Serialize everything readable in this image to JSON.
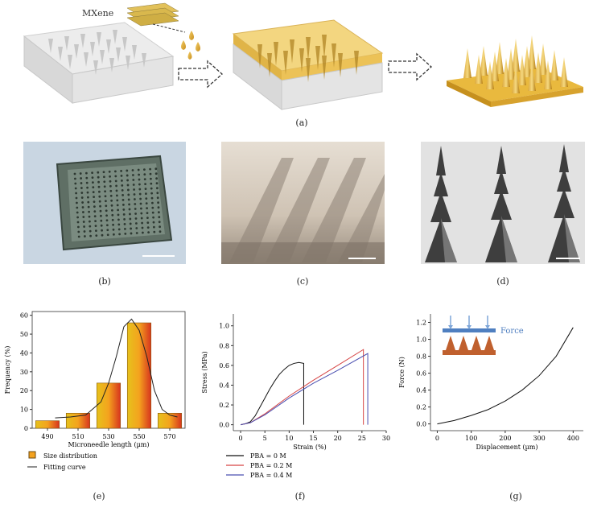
{
  "panels": {
    "a": {
      "label": "(a)",
      "mxene_label": "MXene"
    },
    "b": {
      "label": "(b)"
    },
    "c": {
      "label": "(c)"
    },
    "d": {
      "label": "(d)"
    },
    "e": {
      "label": "(e)"
    },
    "f": {
      "label": "(f)"
    },
    "g": {
      "label": "(g)",
      "force_label": "Force"
    }
  },
  "colors": {
    "mxene_gold": "#e8b43a",
    "pdms_gray": "#dcdcdc",
    "bar_orange": "#f4a21e",
    "force_blue": "#4f7fc0",
    "array_brown": "#c0602e"
  },
  "chart_data": [
    {
      "id": "e",
      "type": "bar",
      "categories": [
        490,
        510,
        530,
        550,
        570
      ],
      "bars": [
        {
          "x": 490,
          "y": 4
        },
        {
          "x": 510,
          "y": 8
        },
        {
          "x": 530,
          "y": 24
        },
        {
          "x": 550,
          "y": 56
        },
        {
          "x": 570,
          "y": 8
        }
      ],
      "fit_curve": {
        "name": "Fitting curve",
        "x": [
          495,
          505,
          515,
          525,
          530,
          535,
          540,
          545,
          550,
          555,
          560,
          565,
          570,
          575
        ],
        "y": [
          5.5,
          6,
          7,
          14,
          24,
          38,
          54,
          58,
          52,
          38,
          20,
          10,
          7,
          6
        ]
      },
      "xlabel": "Microneedle length (µm)",
      "ylabel": "Frequency (%)",
      "xticks": [
        "490",
        "510",
        "530",
        "550",
        "570"
      ],
      "yticks": [
        "0",
        "10",
        "20",
        "30",
        "40",
        "50",
        "60"
      ],
      "ylim": [
        0,
        62
      ],
      "legend": [
        {
          "name": "Size distribution",
          "kind": "box"
        },
        {
          "name": "Fitting curve",
          "kind": "line"
        }
      ]
    },
    {
      "id": "f",
      "type": "line",
      "xlabel": "Strain (%)",
      "ylabel": "Stress (MPa)",
      "xticks": [
        "0",
        "5",
        "10",
        "15",
        "20",
        "25",
        "30"
      ],
      "yticks": [
        "0.0",
        "0.2",
        "0.4",
        "0.6",
        "0.8",
        "1.0"
      ],
      "xlim": [
        -1.5,
        30
      ],
      "ylim": [
        -0.06,
        1.12
      ],
      "series": [
        {
          "name": "PBA = 0 M",
          "color": "#111111",
          "x": [
            0,
            1,
            2,
            3,
            4,
            5,
            6,
            7,
            8,
            9,
            10,
            11,
            12,
            13,
            13
          ],
          "y": [
            0,
            0.01,
            0.03,
            0.09,
            0.18,
            0.27,
            0.36,
            0.44,
            0.51,
            0.56,
            0.6,
            0.62,
            0.63,
            0.62,
            0
          ]
        },
        {
          "name": "PBA = 0.2 M",
          "color": "#d64545",
          "x": [
            0,
            2,
            5,
            10,
            15,
            20,
            25.3,
            25.3
          ],
          "y": [
            0,
            0.02,
            0.11,
            0.29,
            0.45,
            0.6,
            0.76,
            0
          ]
        },
        {
          "name": "PBA = 0.4 M",
          "color": "#4a4fb0",
          "x": [
            0,
            2,
            5,
            10,
            15,
            20,
            26.2,
            26.2
          ],
          "y": [
            0,
            0.02,
            0.1,
            0.27,
            0.42,
            0.55,
            0.72,
            0
          ]
        }
      ]
    },
    {
      "id": "g",
      "type": "line",
      "xlabel": "Displacement (µm)",
      "ylabel": "Force (N)",
      "xticks": [
        "0",
        "100",
        "200",
        "300",
        "400"
      ],
      "yticks": [
        "0.0",
        "0.2",
        "0.4",
        "0.6",
        "0.8",
        "1.0",
        "1.2"
      ],
      "xlim": [
        -20,
        430
      ],
      "ylim": [
        -0.08,
        1.3
      ],
      "series": [
        {
          "name": "",
          "color": "#111111",
          "x": [
            0,
            50,
            100,
            150,
            200,
            250,
            300,
            350,
            400
          ],
          "y": [
            0,
            0.04,
            0.1,
            0.17,
            0.27,
            0.4,
            0.57,
            0.8,
            1.14
          ]
        }
      ]
    }
  ]
}
